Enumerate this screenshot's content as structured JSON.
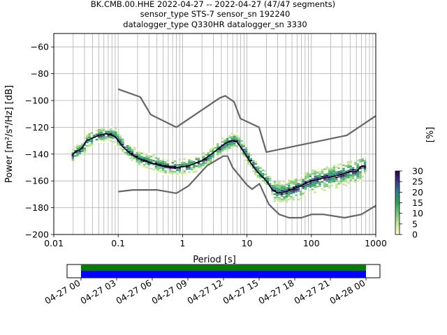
{
  "header": {
    "title_line1": "BK.CMB.00.HHE   2022-04-27 -- 2022-04-27  (47/47 segments)",
    "title_line2": "sensor_type STS-7 sensor_sn 192240",
    "title_line3": "datalogger_type Q330HR datalogger_sn 3330"
  },
  "chart_data": [
    {
      "type": "heatmap",
      "xlabel": "Period [s]",
      "ylabel": "Power [m²/s⁴/Hz] [dB]",
      "xscale": "log",
      "xlim": [
        0.01,
        1000
      ],
      "ylim": [
        -200,
        -50
      ],
      "x_tick_labels": [
        "0.01",
        "0.1",
        "1",
        "10",
        "100",
        "1000"
      ],
      "x_ticks": [
        0.01,
        0.1,
        1,
        10,
        100,
        1000
      ],
      "y_ticks": [
        -200,
        -180,
        -160,
        -140,
        -120,
        -100,
        -80,
        -60
      ],
      "y_tick_labels": [
        "−200",
        "−180",
        "−160",
        "−140",
        "−120",
        "−100",
        "−80",
        "−60"
      ],
      "grid": true,
      "colorbar": {
        "label": "[%]",
        "range": [
          0,
          30
        ],
        "ticks": [
          0,
          5,
          10,
          15,
          20,
          25,
          30
        ],
        "colors": [
          "#ffffcc",
          "#c2e699",
          "#78c679",
          "#31a354",
          "#2c7f8a",
          "#3b3b8a",
          "#2d004b"
        ]
      },
      "series": [
        {
          "role": "noise_model_high",
          "color": "#666666",
          "x": [
            0.1,
            0.22,
            0.32,
            0.8,
            3.8,
            4.6,
            6.3,
            7.9,
            15.4,
            20,
            354.8,
            1000
          ],
          "y": [
            -91.5,
            -97.4,
            -110.5,
            -120.0,
            -98.0,
            -96.5,
            -101.0,
            -113.5,
            -120.0,
            -138.5,
            -126.0,
            -111.5
          ]
        },
        {
          "role": "noise_model_low",
          "color": "#666666",
          "x": [
            0.1,
            0.17,
            0.4,
            0.8,
            1.24,
            2.4,
            4.3,
            5.0,
            6.0,
            10.0,
            12.0,
            15.6,
            21.9,
            31.6,
            45.0,
            70.0,
            101.0,
            154.0,
            328.0,
            600.0,
            1000.0
          ],
          "y": [
            -168.0,
            -166.7,
            -166.7,
            -169.2,
            -163.7,
            -148.6,
            -141.5,
            -141.5,
            -150.0,
            -163.0,
            -166.2,
            -162.1,
            -177.5,
            -185.0,
            -187.5,
            -187.5,
            -185.0,
            -185.0,
            -187.5,
            -185.0,
            -178.5
          ]
        },
        {
          "role": "mean_psd",
          "color": "#000000",
          "x": [
            0.019,
            0.022,
            0.025,
            0.028,
            0.032,
            0.04,
            0.05,
            0.06,
            0.07,
            0.08,
            0.09,
            0.1,
            0.12,
            0.15,
            0.2,
            0.3,
            0.5,
            0.8,
            1.2,
            2.0,
            3.0,
            4.0,
            5.0,
            6.0,
            7.0,
            8.0,
            10.0,
            12.0,
            15.0,
            20.0,
            25.0,
            30.0,
            40.0,
            60.0,
            80.0,
            100.0,
            150.0,
            200.0,
            300.0,
            400.0,
            500.0,
            600.0,
            700.0
          ],
          "y": [
            -141,
            -138,
            -137,
            -135,
            -130,
            -128,
            -126,
            -125,
            -125,
            -126,
            -127,
            -130,
            -135,
            -139,
            -143,
            -146,
            -149,
            -150,
            -149,
            -145,
            -139,
            -134,
            -131,
            -130,
            -131,
            -135,
            -142,
            -148,
            -154,
            -160,
            -167,
            -169,
            -168,
            -165,
            -162,
            -160,
            -158,
            -157,
            -155,
            -153,
            -153,
            -149,
            -149
          ]
        }
      ],
      "time_axis": {
        "tick_labels": [
          "04-27 00",
          "04-27 03",
          "04-27 06",
          "04-27 09",
          "04-27 12",
          "04-27 15",
          "04-27 18",
          "04-27 21",
          "04-28 00"
        ],
        "coverage_colors": [
          "#008000",
          "#0000ff"
        ]
      }
    }
  ]
}
